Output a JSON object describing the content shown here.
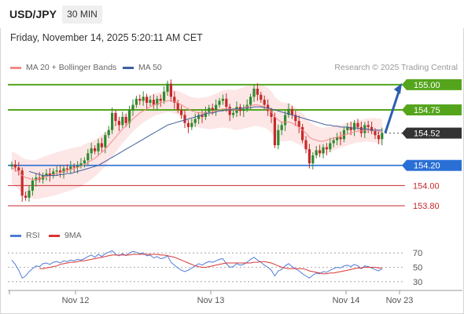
{
  "header": {
    "symbol": "USD/JPY",
    "timeframe": "30 MIN"
  },
  "timestamp": "Friday, November 14, 2025 5:20:11 AM CET",
  "legend": {
    "ma20_label": "MA 20 + Bollinger Bands",
    "ma50_label": "MA 50",
    "credit": "Research © 2025 Trading Central"
  },
  "rsi_legend": {
    "rsi_label": "RSI",
    "ma_label": "9MA"
  },
  "colors": {
    "ma20": "#f48a8a",
    "bands_fill": "#fde2e2",
    "ma50": "#3e5f9e",
    "bull": "#2e8b2e",
    "bear": "#c62a2a",
    "resistance": "#55a51c",
    "support": "#2a6fd6",
    "support_minor": "#c62a2a",
    "current": "#333333",
    "rsi": "#4f7bd9",
    "rsi_ma": "#d93636",
    "arrow": "#2a5fb0"
  },
  "chart_data": [
    {
      "type": "candlestick",
      "title": "",
      "xlabel": "",
      "ylabel": "",
      "ylim": [
        153.7,
        155.1
      ],
      "x_ticks": [
        "Nov 12",
        "Nov 13",
        "Nov 14",
        "Nov 23"
      ],
      "levels": [
        {
          "value": 155.0,
          "label": "155.00",
          "kind": "resistance"
        },
        {
          "value": 154.75,
          "label": "154.75",
          "kind": "resistance"
        },
        {
          "value": 154.52,
          "label": "154.52",
          "kind": "current"
        },
        {
          "value": 154.2,
          "label": "154.20",
          "kind": "support"
        },
        {
          "value": 154.0,
          "label": "154.00",
          "kind": "support-minor"
        },
        {
          "value": 153.8,
          "label": "153.80",
          "kind": "support-minor"
        }
      ],
      "forecast_arrow": {
        "from": 154.52,
        "to": 155.0
      },
      "close": [
        154.21,
        154.18,
        154.15,
        153.9,
        153.88,
        153.95,
        154.05,
        154.08,
        154.06,
        154.1,
        154.12,
        154.1,
        154.14,
        154.15,
        154.13,
        154.17,
        154.16,
        154.19,
        154.18,
        154.2,
        154.22,
        154.25,
        154.32,
        154.37,
        154.34,
        154.42,
        154.38,
        154.5,
        154.55,
        154.72,
        154.64,
        154.6,
        154.68,
        154.62,
        154.75,
        154.8,
        154.86,
        154.84,
        154.88,
        154.82,
        154.85,
        154.8,
        154.86,
        154.84,
        154.93,
        155.01,
        154.88,
        154.82,
        154.75,
        154.7,
        154.62,
        154.58,
        154.62,
        154.66,
        154.7,
        154.68,
        154.73,
        154.77,
        154.75,
        154.8,
        154.84,
        154.86,
        154.78,
        154.7,
        154.72,
        154.78,
        154.74,
        154.76,
        154.8,
        154.88,
        154.96,
        154.9,
        154.85,
        154.8,
        154.74,
        154.68,
        154.4,
        154.55,
        154.6,
        154.7,
        154.76,
        154.7,
        154.64,
        154.58,
        154.45,
        154.36,
        154.22,
        154.3,
        154.35,
        154.32,
        154.38,
        154.36,
        154.42,
        154.45,
        154.48,
        154.46,
        154.55,
        154.58,
        154.55,
        154.62,
        154.58,
        154.52,
        154.6,
        154.58,
        154.54,
        154.5,
        154.46,
        154.52
      ],
      "ma20": [
        154.18,
        154.16,
        154.13,
        154.1,
        154.08,
        154.07,
        154.06,
        154.06,
        154.07,
        154.08,
        154.09,
        154.1,
        154.11,
        154.12,
        154.13,
        154.14,
        154.15,
        154.16,
        154.17,
        154.18,
        154.19,
        154.21,
        154.23,
        154.25,
        154.27,
        154.3,
        154.33,
        154.36,
        154.4,
        154.44,
        154.48,
        154.52,
        154.56,
        154.59,
        154.63,
        154.66,
        154.69,
        154.72,
        154.74,
        154.76,
        154.78,
        154.8,
        154.81,
        154.82,
        154.83,
        154.84,
        154.84,
        154.83,
        154.82,
        154.8,
        154.78,
        154.76,
        154.74,
        154.73,
        154.72,
        154.72,
        154.72,
        154.72,
        154.73,
        154.74,
        154.75,
        154.76,
        154.76,
        154.76,
        154.75,
        154.75,
        154.76,
        154.77,
        154.78,
        154.79,
        154.8,
        154.8,
        154.79,
        154.78,
        154.76,
        154.73,
        154.68,
        154.65,
        154.63,
        154.63,
        154.63,
        154.62,
        154.6,
        154.58,
        154.55,
        154.52,
        154.48,
        154.46,
        154.45,
        154.44,
        154.44,
        154.45,
        154.46,
        154.47,
        154.48,
        154.49,
        154.5,
        154.51,
        154.52,
        154.53,
        154.54,
        154.54,
        154.55,
        154.55,
        154.55,
        154.55,
        154.54,
        154.53
      ],
      "ma50": [
        null,
        null,
        null,
        null,
        null,
        154.14,
        154.13,
        154.12,
        154.11,
        154.1,
        154.1,
        154.1,
        154.1,
        154.1,
        154.11,
        154.11,
        154.12,
        154.12,
        154.13,
        154.14,
        154.15,
        154.16,
        154.17,
        154.18,
        154.19,
        154.2,
        154.22,
        154.24,
        154.26,
        154.28,
        154.3,
        154.32,
        154.34,
        154.36,
        154.38,
        154.4,
        154.42,
        154.44,
        154.46,
        154.48,
        154.5,
        154.52,
        154.54,
        154.56,
        154.58,
        154.6,
        154.61,
        154.62,
        154.63,
        154.64,
        154.65,
        154.66,
        154.67,
        154.68,
        154.69,
        154.7,
        154.71,
        154.72,
        154.72,
        154.73,
        154.74,
        154.74,
        154.75,
        154.75,
        154.76,
        154.76,
        154.76,
        154.77,
        154.77,
        154.77,
        154.78,
        154.78,
        154.78,
        154.77,
        154.77,
        154.76,
        154.75,
        154.74,
        154.73,
        154.72,
        154.71,
        154.7,
        154.69,
        154.68,
        154.67,
        154.66,
        154.65,
        154.64,
        154.63,
        154.62,
        154.61,
        154.6,
        154.6,
        154.59,
        154.59,
        154.58,
        154.58,
        154.58,
        154.57,
        154.57,
        154.57,
        154.56,
        154.56,
        154.56,
        154.55,
        154.55,
        154.55,
        154.55
      ]
    },
    {
      "type": "line",
      "title": "",
      "xlabel": "",
      "ylabel": "",
      "ylim": [
        20,
        80
      ],
      "y_ticks": [
        "70",
        "50",
        "30"
      ],
      "series": [
        {
          "name": "RSI",
          "values": [
            60,
            54,
            46,
            35,
            38,
            44,
            48,
            52,
            51,
            55,
            56,
            54,
            57,
            58,
            56,
            59,
            58,
            60,
            59,
            61,
            60,
            62,
            65,
            67,
            64,
            68,
            65,
            69,
            71,
            73,
            68,
            66,
            69,
            66,
            70,
            72,
            71,
            69,
            70,
            66,
            67,
            63,
            65,
            62,
            63,
            66,
            57,
            53,
            49,
            46,
            44,
            46,
            49,
            52,
            55,
            53,
            56,
            58,
            57,
            59,
            61,
            62,
            55,
            50,
            51,
            55,
            53,
            54,
            57,
            61,
            64,
            60,
            57,
            53,
            50,
            46,
            38,
            45,
            47,
            52,
            55,
            51,
            48,
            45,
            41,
            38,
            35,
            39,
            42,
            41,
            44,
            43,
            46,
            48,
            50,
            49,
            52,
            53,
            51,
            54,
            52,
            48,
            52,
            51,
            49,
            47,
            45,
            48
          ]
        },
        {
          "name": "9MA",
          "values": [
            null,
            null,
            null,
            null,
            null,
            null,
            null,
            null,
            48,
            48,
            49,
            50,
            51,
            52,
            54,
            55,
            56,
            57,
            57,
            58,
            59,
            59,
            60,
            61,
            62,
            63,
            64,
            65,
            66,
            67,
            67,
            67,
            67,
            67,
            67,
            68,
            68,
            68,
            68,
            68,
            68,
            68,
            68,
            67,
            67,
            66,
            65,
            64,
            62,
            60,
            58,
            56,
            54,
            52,
            51,
            50,
            50,
            51,
            52,
            53,
            54,
            55,
            56,
            56,
            56,
            56,
            56,
            56,
            56,
            56,
            57,
            57,
            58,
            58,
            57,
            56,
            54,
            52,
            50,
            49,
            48,
            48,
            48,
            48,
            48,
            47,
            45,
            44,
            43,
            42,
            41,
            41,
            42,
            42,
            43,
            44,
            45,
            46,
            47,
            48,
            49,
            49,
            50,
            50,
            50,
            50,
            49,
            49
          ]
        }
      ]
    }
  ]
}
